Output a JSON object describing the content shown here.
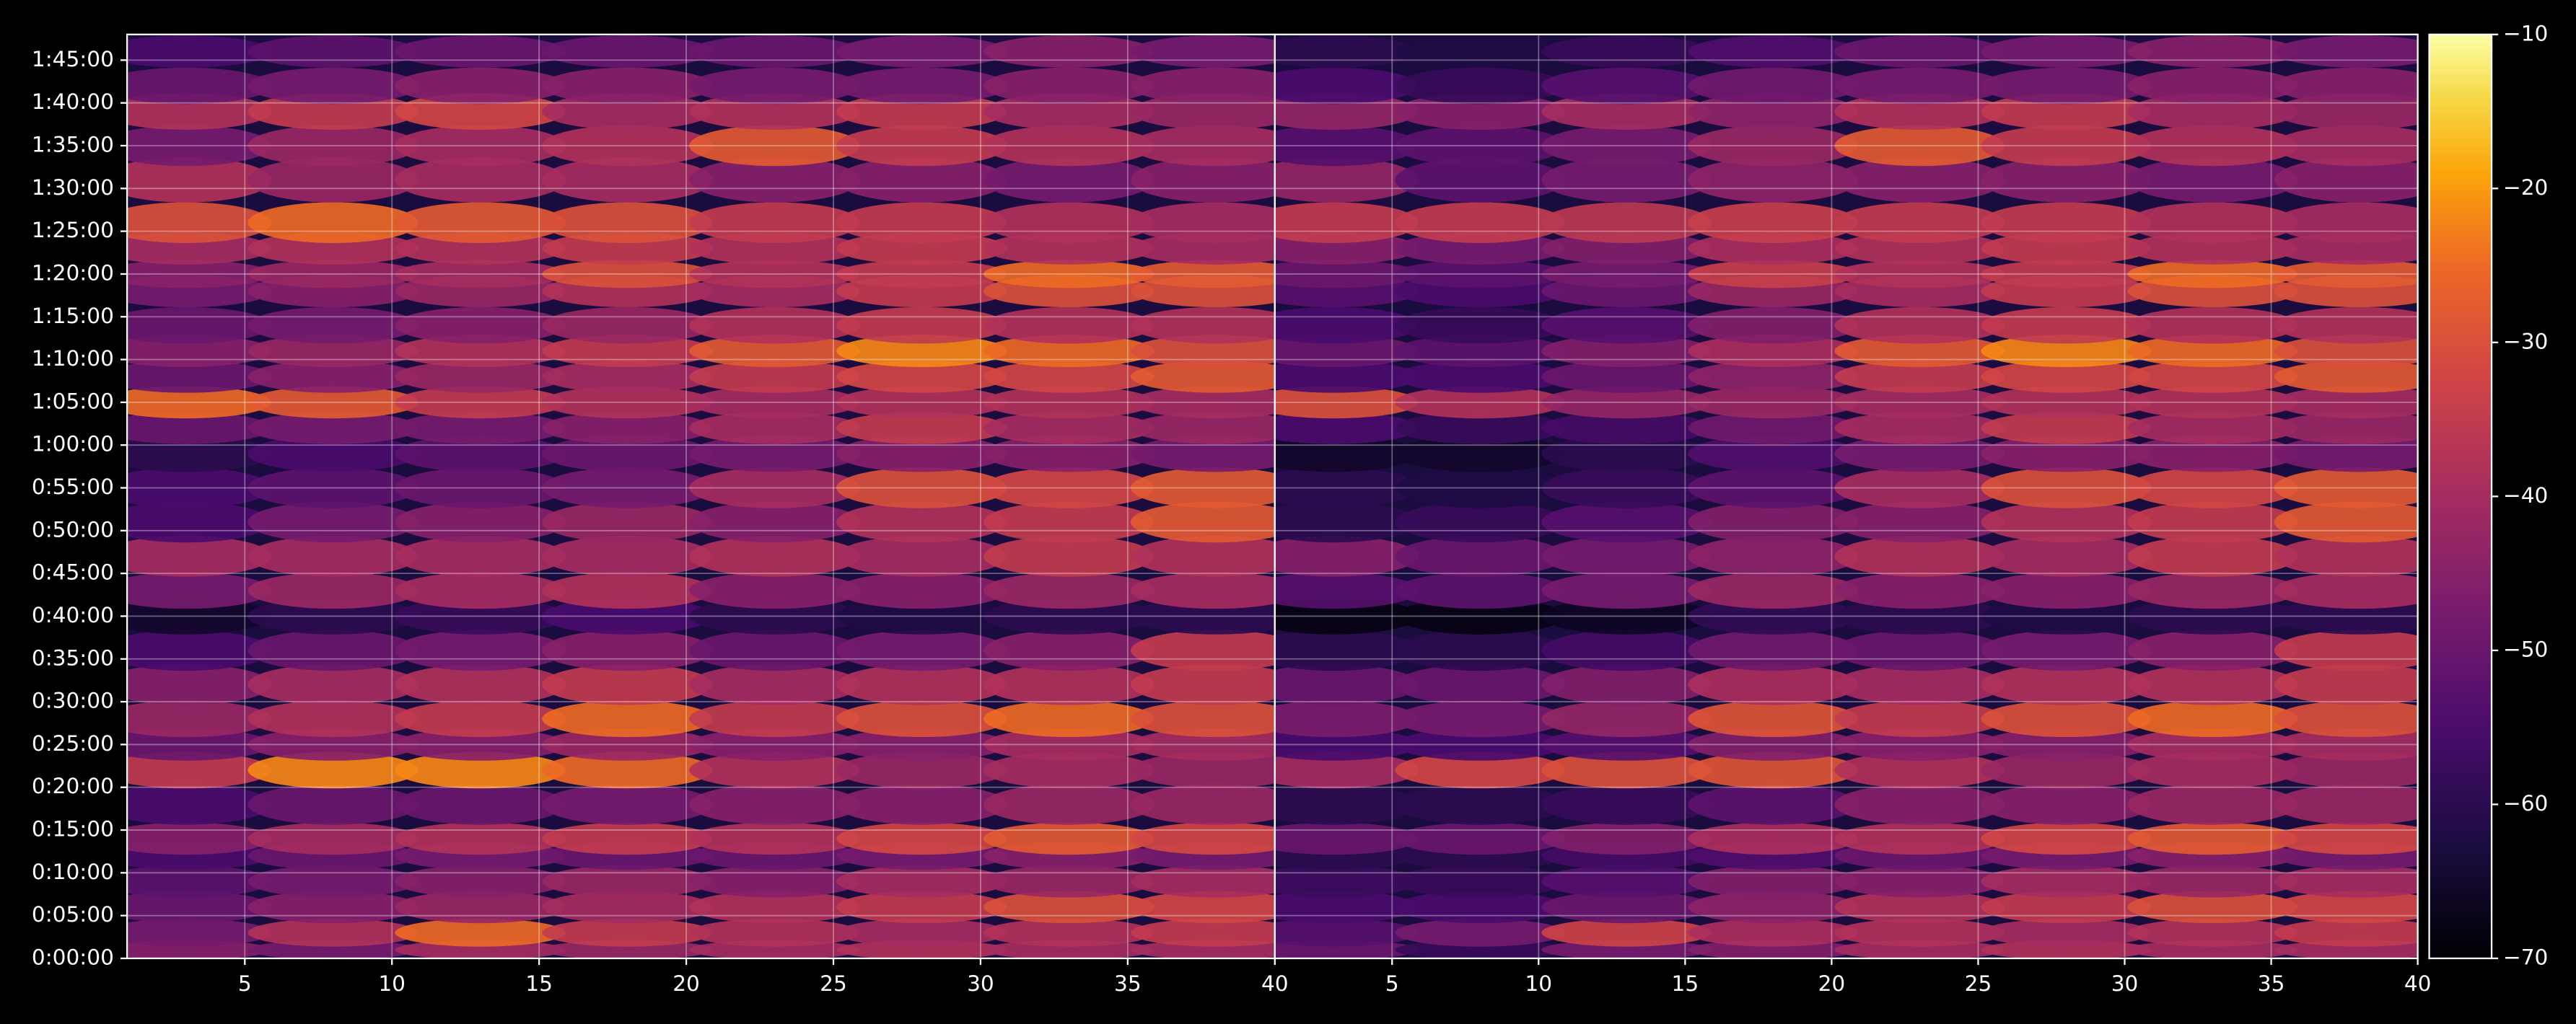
{
  "chart_data": {
    "type": "heatmap",
    "colormap": "inferno",
    "ylim": [
      0,
      6480
    ],
    "yticks": [
      {
        "value": 0,
        "label": "0:00:00"
      },
      {
        "value": 300,
        "label": "0:05:00"
      },
      {
        "value": 600,
        "label": "0:10:00"
      },
      {
        "value": 900,
        "label": "0:15:00"
      },
      {
        "value": 1200,
        "label": "0:20:00"
      },
      {
        "value": 1500,
        "label": "0:25:00"
      },
      {
        "value": 1800,
        "label": "0:30:00"
      },
      {
        "value": 2100,
        "label": "0:35:00"
      },
      {
        "value": 2400,
        "label": "0:40:00"
      },
      {
        "value": 2700,
        "label": "0:45:00"
      },
      {
        "value": 3000,
        "label": "0:50:00"
      },
      {
        "value": 3300,
        "label": "0:55:00"
      },
      {
        "value": 3600,
        "label": "1:00:00"
      },
      {
        "value": 3900,
        "label": "1:05:00"
      },
      {
        "value": 4200,
        "label": "1:10:00"
      },
      {
        "value": 4500,
        "label": "1:15:00"
      },
      {
        "value": 4800,
        "label": "1:20:00"
      },
      {
        "value": 5100,
        "label": "1:25:00"
      },
      {
        "value": 5400,
        "label": "1:30:00"
      },
      {
        "value": 5700,
        "label": "1:35:00"
      },
      {
        "value": 6000,
        "label": "1:40:00"
      },
      {
        "value": 6300,
        "label": "1:45:00"
      }
    ],
    "y": [
      60,
      180,
      360,
      540,
      720,
      840,
      1080,
      1320,
      1500,
      1680,
      1920,
      2160,
      2400,
      2580,
      2820,
      3060,
      3300,
      3540,
      3720,
      3900,
      4080,
      4260,
      4440,
      4680,
      4800,
      4980,
      5160,
      5460,
      5700,
      5940,
      6120,
      6360
    ],
    "grid": true,
    "panels": [
      {
        "xlim": [
          1,
          40
        ],
        "xticks": [
          5,
          10,
          15,
          20,
          25,
          30,
          35,
          40
        ],
        "x": [
          3,
          8,
          13,
          18,
          23,
          28,
          33,
          38
        ],
        "values": [
          [
            -45,
            -48,
            -40,
            -42,
            -40,
            -38,
            -40,
            -40
          ],
          [
            -48,
            -38,
            -25,
            -35,
            -38,
            -40,
            -38,
            -35
          ],
          [
            -50,
            -45,
            -42,
            -40,
            -38,
            -35,
            -30,
            -32
          ],
          [
            -52,
            -48,
            -45,
            -42,
            -45,
            -40,
            -42,
            -40
          ],
          [
            -55,
            -50,
            -48,
            -50,
            -50,
            -48,
            -45,
            -48
          ],
          [
            -45,
            -40,
            -38,
            -35,
            -38,
            -32,
            -28,
            -32
          ],
          [
            -55,
            -50,
            -50,
            -48,
            -45,
            -45,
            -42,
            -42
          ],
          [
            -35,
            -22,
            -22,
            -25,
            -38,
            -42,
            -40,
            -42
          ],
          [
            -50,
            -45,
            -45,
            -42,
            -45,
            -45,
            -40,
            -40
          ],
          [
            -42,
            -38,
            -35,
            -25,
            -35,
            -30,
            -25,
            -30
          ],
          [
            -45,
            -40,
            -38,
            -35,
            -40,
            -38,
            -38,
            -35
          ],
          [
            -55,
            -50,
            -48,
            -45,
            -50,
            -48,
            -45,
            -35
          ],
          [
            -65,
            -60,
            -58,
            -55,
            -60,
            -62,
            -60,
            -60
          ],
          [
            -48,
            -42,
            -40,
            -38,
            -45,
            -45,
            -42,
            -40
          ],
          [
            -40,
            -40,
            -40,
            -40,
            -38,
            -40,
            -35,
            -38
          ],
          [
            -55,
            -48,
            -45,
            -42,
            -45,
            -38,
            -35,
            -28
          ],
          [
            -55,
            -52,
            -50,
            -48,
            -40,
            -30,
            -32,
            -28
          ],
          [
            -60,
            -55,
            -52,
            -50,
            -48,
            -45,
            -45,
            -48
          ],
          [
            -50,
            -48,
            -48,
            -45,
            -40,
            -35,
            -40,
            -42
          ],
          [
            -25,
            -28,
            -35,
            -38,
            -40,
            -38,
            -38,
            -40
          ],
          [
            -50,
            -45,
            -42,
            -40,
            -35,
            -32,
            -32,
            -28
          ],
          [
            -45,
            -42,
            -38,
            -35,
            -28,
            -22,
            -25,
            -30
          ],
          [
            -50,
            -48,
            -45,
            -42,
            -38,
            -35,
            -38,
            -38
          ],
          [
            -48,
            -45,
            -42,
            -38,
            -40,
            -35,
            -30,
            -30
          ],
          [
            -45,
            -42,
            -40,
            -30,
            -38,
            -35,
            -25,
            -28
          ],
          [
            -40,
            -38,
            -38,
            -35,
            -38,
            -35,
            -38,
            -40
          ],
          [
            -30,
            -25,
            -28,
            -30,
            -35,
            -35,
            -38,
            -40
          ],
          [
            -38,
            -42,
            -40,
            -40,
            -45,
            -45,
            -48,
            -45
          ],
          [
            -48,
            -42,
            -40,
            -38,
            -28,
            -35,
            -38,
            -40
          ],
          [
            -38,
            -35,
            -32,
            -40,
            -38,
            -35,
            -40,
            -42
          ],
          [
            -50,
            -48,
            -45,
            -45,
            -48,
            -48,
            -45,
            -45
          ],
          [
            -55,
            -52,
            -50,
            -50,
            -50,
            -48,
            -45,
            -48
          ]
        ]
      },
      {
        "xlim": [
          1,
          40
        ],
        "xticks": [
          5,
          10,
          15,
          20,
          25,
          30,
          35,
          40
        ],
        "x": [
          3,
          8,
          13,
          18,
          23,
          28,
          33,
          38
        ],
        "values": [
          [
            -50,
            -58,
            -48,
            -46,
            -40,
            -38,
            -40,
            -40
          ],
          [
            -53,
            -48,
            -33,
            -39,
            -38,
            -40,
            -38,
            -35
          ],
          [
            -55,
            -55,
            -50,
            -44,
            -38,
            -35,
            -30,
            -32
          ],
          [
            -57,
            -58,
            -53,
            -46,
            -45,
            -40,
            -42,
            -40
          ],
          [
            -60,
            -60,
            -56,
            -54,
            -50,
            -48,
            -45,
            -48
          ],
          [
            -50,
            -50,
            -46,
            -39,
            -38,
            -32,
            -28,
            -32
          ],
          [
            -60,
            -60,
            -58,
            -52,
            -45,
            -45,
            -42,
            -42
          ],
          [
            -40,
            -32,
            -30,
            -29,
            -38,
            -42,
            -40,
            -42
          ],
          [
            -55,
            -55,
            -53,
            -46,
            -45,
            -45,
            -40,
            -40
          ],
          [
            -47,
            -48,
            -43,
            -29,
            -35,
            -30,
            -25,
            -30
          ],
          [
            -50,
            -50,
            -46,
            -39,
            -40,
            -38,
            -38,
            -35
          ],
          [
            -60,
            -60,
            -56,
            -49,
            -50,
            -48,
            -45,
            -35
          ],
          [
            -68,
            -68,
            -66,
            -59,
            -60,
            -62,
            -60,
            -60
          ],
          [
            -53,
            -52,
            -48,
            -42,
            -45,
            -45,
            -42,
            -40
          ],
          [
            -45,
            -50,
            -48,
            -44,
            -38,
            -40,
            -35,
            -38
          ],
          [
            -60,
            -58,
            -53,
            -46,
            -45,
            -38,
            -35,
            -28
          ],
          [
            -60,
            -62,
            -58,
            -52,
            -40,
            -30,
            -32,
            -28
          ],
          [
            -65,
            -65,
            -60,
            -54,
            -48,
            -45,
            -45,
            -48
          ],
          [
            -55,
            -58,
            -56,
            -49,
            -40,
            -35,
            -40,
            -42
          ],
          [
            -30,
            -38,
            -43,
            -42,
            -40,
            -38,
            -38,
            -40
          ],
          [
            -55,
            -55,
            -50,
            -44,
            -35,
            -32,
            -32,
            -28
          ],
          [
            -50,
            -52,
            -46,
            -39,
            -28,
            -22,
            -25,
            -30
          ],
          [
            -55,
            -58,
            -53,
            -46,
            -38,
            -35,
            -38,
            -38
          ],
          [
            -53,
            -55,
            -50,
            -42,
            -40,
            -35,
            -30,
            -30
          ],
          [
            -50,
            -52,
            -48,
            -34,
            -38,
            -35,
            -25,
            -28
          ],
          [
            -45,
            -48,
            -46,
            -39,
            -38,
            -35,
            -38,
            -40
          ],
          [
            -35,
            -35,
            -36,
            -34,
            -35,
            -35,
            -38,
            -40
          ],
          [
            -43,
            -52,
            -48,
            -44,
            -45,
            -45,
            -48,
            -45
          ],
          [
            -53,
            -52,
            -48,
            -42,
            -28,
            -35,
            -38,
            -40
          ],
          [
            -43,
            -45,
            -40,
            -44,
            -38,
            -35,
            -40,
            -42
          ],
          [
            -55,
            -58,
            -53,
            -49,
            -48,
            -48,
            -45,
            -45
          ],
          [
            -60,
            -62,
            -58,
            -54,
            -50,
            -48,
            -45,
            -48
          ]
        ]
      }
    ],
    "colorbar": {
      "lim": [
        -70,
        -10
      ],
      "ticks": [
        {
          "value": -10,
          "label": "−10"
        },
        {
          "value": -20,
          "label": "−20"
        },
        {
          "value": -30,
          "label": "−30"
        },
        {
          "value": -40,
          "label": "−40"
        },
        {
          "value": -50,
          "label": "−50"
        },
        {
          "value": -60,
          "label": "−60"
        },
        {
          "value": -70,
          "label": "−70"
        }
      ]
    }
  }
}
